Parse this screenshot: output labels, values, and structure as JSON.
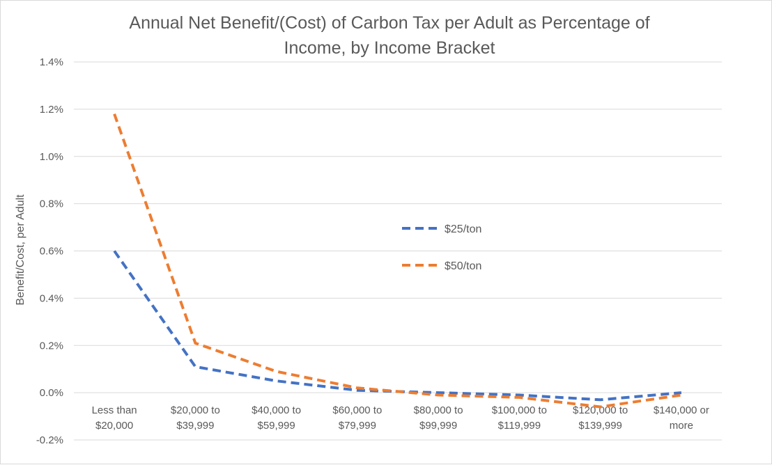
{
  "chart_data": {
    "type": "line",
    "title_lines": [
      "Annual Net Benefit/(Cost) of Carbon Tax per Adult as Percentage of",
      "Income, by Income Bracket"
    ],
    "xlabel": "",
    "ylabel": "Benefit/Cost, per Adult",
    "categories": [
      [
        "Less than",
        "$20,000"
      ],
      [
        "$20,000 to",
        "$39,999"
      ],
      [
        "$40,000 to",
        "$59,999"
      ],
      [
        "$60,000 to",
        "$79,999"
      ],
      [
        "$80,000 to",
        "$99,999"
      ],
      [
        "$100,000 to",
        "$119,999"
      ],
      [
        "$120,000 to",
        "$139,999"
      ],
      [
        "$140,000 or",
        "more"
      ]
    ],
    "series": [
      {
        "name": "$25/ton",
        "color": "#4472c4",
        "values": [
          0.006,
          0.0011,
          0.0005,
          0.0001,
          0.0,
          -0.0001,
          -0.0003,
          0.0
        ]
      },
      {
        "name": "$50/ton",
        "color": "#ed7d31",
        "values": [
          0.0118,
          0.0021,
          0.0009,
          0.0002,
          -0.0001,
          -0.0002,
          -0.0006,
          -0.0001
        ]
      }
    ],
    "ylim": [
      -0.002,
      0.014
    ],
    "yticks": [
      -0.002,
      0.0,
      0.002,
      0.004,
      0.006,
      0.008,
      0.01,
      0.012,
      0.014
    ],
    "yformat": "percent_1",
    "grid": true,
    "legend_position": "center-right"
  }
}
